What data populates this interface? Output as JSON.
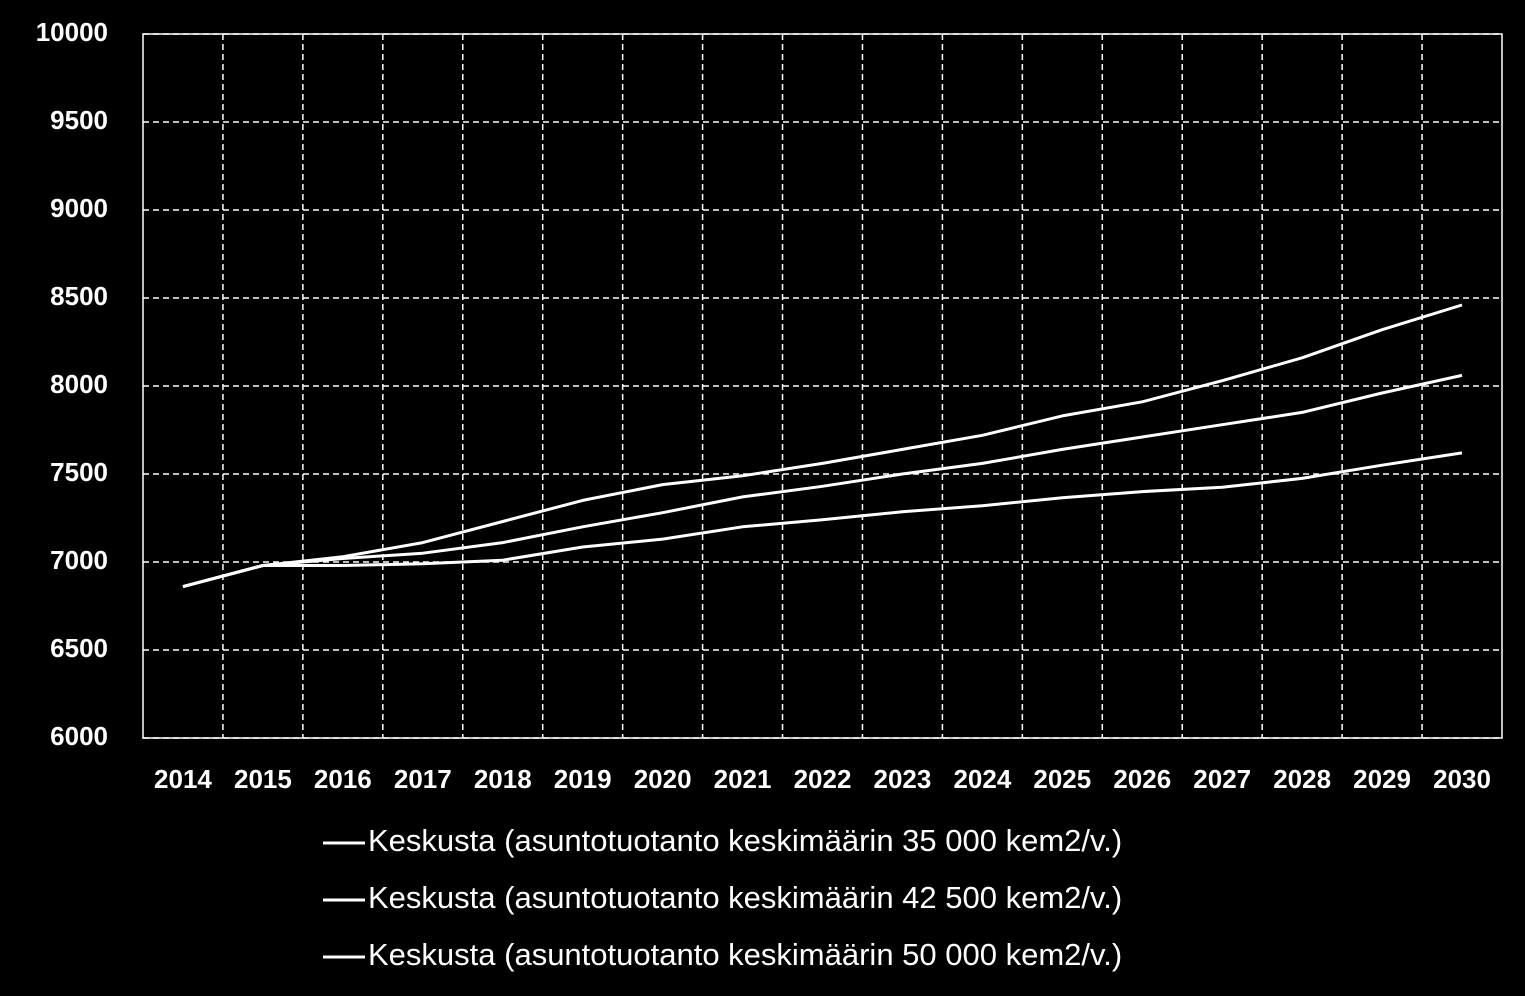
{
  "chart_data": {
    "type": "line",
    "categories": [
      "2014",
      "2015",
      "2016",
      "2017",
      "2018",
      "2019",
      "2020",
      "2021",
      "2022",
      "2023",
      "2024",
      "2025",
      "2026",
      "2027",
      "2028",
      "2029",
      "2030"
    ],
    "series": [
      {
        "name": "Keskusta (asuntotuotanto keskimäärin 35 000 kem2/v.)",
        "color": "#ffffff",
        "values": [
          6860,
          6980,
          6980,
          6990,
          7010,
          7085,
          7130,
          7200,
          7240,
          7285,
          7320,
          7365,
          7400,
          7425,
          7475,
          7550,
          7620
        ]
      },
      {
        "name": "Keskusta (asuntotuotanto keskimäärin 42 500 kem2/v.)",
        "color": "#ffffff",
        "values": [
          6860,
          6980,
          7020,
          7050,
          7110,
          7200,
          7280,
          7370,
          7430,
          7500,
          7560,
          7640,
          7710,
          7780,
          7850,
          7960,
          8060
        ]
      },
      {
        "name": "Keskusta (asuntotuotanto keskimäärin 50 000 kem2/v.)",
        "color": "#ffffff",
        "values": [
          6860,
          6980,
          7030,
          7110,
          7230,
          7350,
          7440,
          7490,
          7560,
          7640,
          7720,
          7830,
          7910,
          8030,
          8160,
          8320,
          8460
        ]
      }
    ],
    "ylim": [
      6000,
      10000
    ],
    "yticks": [
      6000,
      6500,
      7000,
      7500,
      8000,
      8500,
      9000,
      9500,
      10000
    ],
    "grid": true,
    "legend": "bottom"
  }
}
